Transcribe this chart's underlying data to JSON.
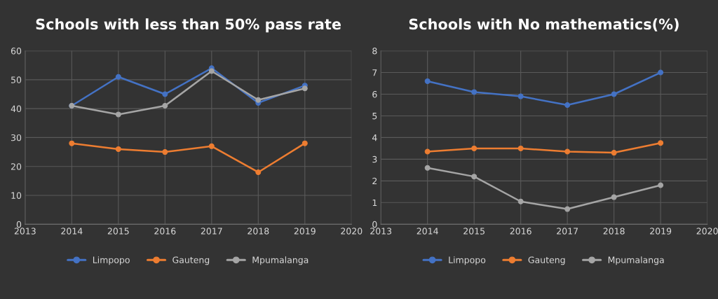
{
  "chart_data": [
    {
      "type": "line",
      "title": "Schools with less than 50% pass rate",
      "x": [
        2014,
        2015,
        2016,
        2017,
        2018,
        2019
      ],
      "series": [
        {
          "name": "Limpopo",
          "color": "#4472c4",
          "values": [
            41,
            51,
            45,
            54,
            42,
            48
          ]
        },
        {
          "name": "Gauteng",
          "color": "#ed7d31",
          "values": [
            28,
            26,
            25,
            27,
            18,
            28
          ]
        },
        {
          "name": "Mpumalanga",
          "color": "#a5a5a5",
          "values": [
            41,
            38,
            41,
            53,
            43,
            47
          ]
        }
      ],
      "xlim": [
        2013,
        2020
      ],
      "xticks": [
        2013,
        2014,
        2015,
        2016,
        2017,
        2018,
        2019,
        2020
      ],
      "ylim": [
        0,
        60
      ],
      "yticks": [
        0,
        10,
        20,
        30,
        40,
        50,
        60
      ],
      "grid": true,
      "legend": "bottom",
      "marker": "circle",
      "line_style": "solid"
    },
    {
      "type": "line",
      "title": "Schools with No mathematics(%)",
      "x": [
        2014,
        2015,
        2016,
        2017,
        2018,
        2019
      ],
      "series": [
        {
          "name": "Limpopo",
          "color": "#4472c4",
          "values": [
            6.6,
            6.1,
            5.9,
            5.5,
            6.0,
            7.0
          ]
        },
        {
          "name": "Gauteng",
          "color": "#ed7d31",
          "values": [
            3.35,
            3.5,
            3.5,
            3.35,
            3.3,
            3.75
          ]
        },
        {
          "name": "Mpumalanga",
          "color": "#a5a5a5",
          "values": [
            2.6,
            2.2,
            1.05,
            0.7,
            1.25,
            1.8
          ]
        }
      ],
      "xlim": [
        2013,
        2020
      ],
      "xticks": [
        2013,
        2014,
        2015,
        2016,
        2017,
        2018,
        2019,
        2020
      ],
      "ylim": [
        0,
        8
      ],
      "yticks": [
        0,
        1,
        2,
        3,
        4,
        5,
        6,
        7,
        8
      ],
      "grid": true,
      "legend": "bottom",
      "marker": "circle",
      "line_style": "solid"
    }
  ]
}
